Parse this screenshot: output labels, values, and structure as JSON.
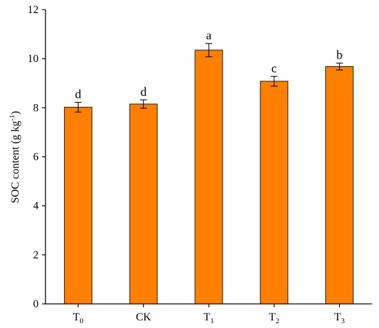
{
  "chart_data": {
    "type": "bar",
    "categories": [
      {
        "base": "T",
        "sub": "0"
      },
      {
        "base": "CK",
        "sub": ""
      },
      {
        "base": "T",
        "sub": "1"
      },
      {
        "base": "T",
        "sub": "2"
      },
      {
        "base": "T",
        "sub": "3"
      }
    ],
    "values": [
      8.02,
      8.15,
      10.35,
      9.08,
      9.68
    ],
    "errors": [
      0.2,
      0.17,
      0.27,
      0.2,
      0.14
    ],
    "significance": [
      "d",
      "d",
      "a",
      "c",
      "b"
    ],
    "ylabel": {
      "main": "SOC content (g kg",
      "sup": "-1",
      "close": ")"
    },
    "xlabel": "",
    "ylim": [
      0,
      12
    ],
    "yticks": [
      0,
      2,
      4,
      6,
      8,
      10,
      12
    ],
    "bar_color": "#ff8000",
    "grid": false,
    "legend": "none"
  }
}
